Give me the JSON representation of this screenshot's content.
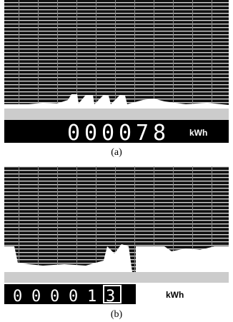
{
  "panels": [
    {
      "label": "(a)",
      "digits": [
        "0",
        "0",
        "0",
        "0",
        "7",
        "8"
      ],
      "unit": "kWh"
    },
    {
      "label": "(b)",
      "digits": [
        "0",
        "0",
        "0",
        "0",
        "1",
        "3"
      ],
      "unit": "kWh"
    }
  ]
}
